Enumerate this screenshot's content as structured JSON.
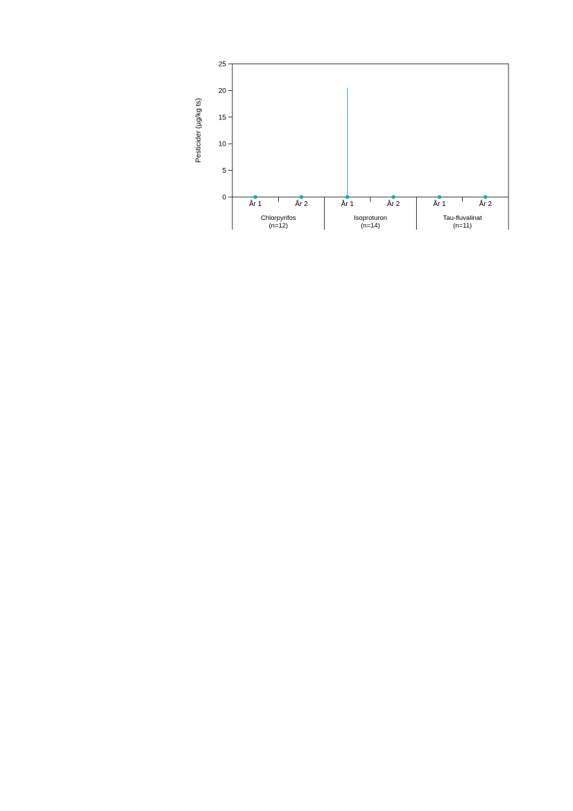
{
  "chart_data": {
    "type": "scatter",
    "title": "",
    "xlabel": "",
    "ylabel": "Pesticider (µg/kg ts)",
    "ylim": [
      0,
      25
    ],
    "yticks": [
      0,
      5,
      10,
      15,
      20,
      25
    ],
    "grid": false,
    "colors": {
      "point": "#1aa5c4",
      "range": "#4a90c8",
      "axis": "#000000"
    },
    "groups": [
      {
        "name": "Chlorpyrifos",
        "n_label": "(n=12)",
        "categories": [
          "År 1",
          "År 2"
        ]
      },
      {
        "name": "Isoproturon",
        "n_label": "(n=14)",
        "categories": [
          "År 1",
          "År 2"
        ]
      },
      {
        "name": "Tau-fluvalinat",
        "n_label": "(n=11)",
        "categories": [
          "År 1",
          "År 2"
        ]
      }
    ],
    "points": [
      {
        "group": "Chlorpyrifos",
        "category": "År 1",
        "value": 0,
        "max": 0
      },
      {
        "group": "Chlorpyrifos",
        "category": "År 2",
        "value": 0,
        "max": 0
      },
      {
        "group": "Isoproturon",
        "category": "År 1",
        "value": 0,
        "max": 20.5
      },
      {
        "group": "Isoproturon",
        "category": "År 2",
        "value": 0,
        "max": 0
      },
      {
        "group": "Tau-fluvalinat",
        "category": "År 1",
        "value": 0,
        "max": 0
      },
      {
        "group": "Tau-fluvalinat",
        "category": "År 2",
        "value": 0,
        "max": 0
      }
    ]
  }
}
